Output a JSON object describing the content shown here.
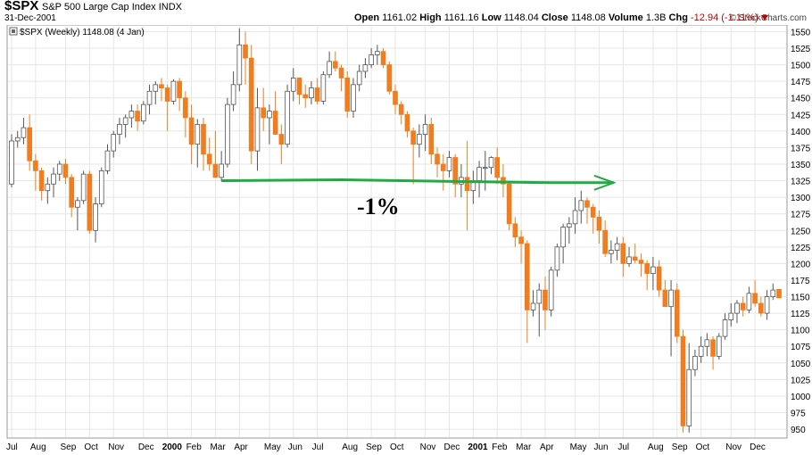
{
  "header": {
    "symbol": "$SPX",
    "name": "S&P 500 Large Cap Index",
    "exchange": "INDX",
    "date": "31-Dec-2001",
    "brand": "© StockCharts.com",
    "open_label": "Open",
    "open": "1161.02",
    "high_label": "High",
    "high": "1161.16",
    "low_label": "Low",
    "low": "1148.04",
    "close_label": "Close",
    "close": "1148.08",
    "volume_label": "Volume",
    "volume": "1.3B",
    "chg_label": "Chg",
    "chg": "-12.94 (-1.11%)"
  },
  "chart_data": {
    "type": "candlestick",
    "legend": "$SPX (Weekly) 1148.08 (4 Jan)",
    "annotation": "-1%",
    "up_color": "#ffffff",
    "down_color": "#f07d1f",
    "trend_color": "#22aa44",
    "ylim": [
      938,
      1560
    ],
    "y_ticks": [
      950,
      975,
      1000,
      1025,
      1050,
      1075,
      1100,
      1125,
      1150,
      1175,
      1200,
      1225,
      1250,
      1275,
      1300,
      1325,
      1350,
      1375,
      1400,
      1425,
      1450,
      1475,
      1500,
      1525,
      1550
    ],
    "x_ticks": [
      {
        "label": "Jul",
        "i": 0
      },
      {
        "label": "Aug",
        "i": 4
      },
      {
        "label": "Sep",
        "i": 9
      },
      {
        "label": "Oct",
        "i": 13
      },
      {
        "label": "Nov",
        "i": 17
      },
      {
        "label": "Dec",
        "i": 22
      },
      {
        "label": "2000",
        "i": 26,
        "bold": true
      },
      {
        "label": "Feb",
        "i": 30
      },
      {
        "label": "Mar",
        "i": 34
      },
      {
        "label": "Apr",
        "i": 38
      },
      {
        "label": "May",
        "i": 43
      },
      {
        "label": "Jun",
        "i": 47
      },
      {
        "label": "Jul",
        "i": 51
      },
      {
        "label": "Aug",
        "i": 56
      },
      {
        "label": "Sep",
        "i": 60
      },
      {
        "label": "Oct",
        "i": 64
      },
      {
        "label": "Nov",
        "i": 69
      },
      {
        "label": "Dec",
        "i": 73
      },
      {
        "label": "2001",
        "i": 77,
        "bold": true
      },
      {
        "label": "Feb",
        "i": 81
      },
      {
        "label": "Mar",
        "i": 85
      },
      {
        "label": "Apr",
        "i": 89
      },
      {
        "label": "May",
        "i": 94
      },
      {
        "label": "Jun",
        "i": 98
      },
      {
        "label": "Jul",
        "i": 102
      },
      {
        "label": "Aug",
        "i": 107
      },
      {
        "label": "Sep",
        "i": 111
      },
      {
        "label": "Oct",
        "i": 115
      },
      {
        "label": "Nov",
        "i": 120
      },
      {
        "label": "Dec",
        "i": 124
      }
    ],
    "candles": [
      [
        1320,
        1395,
        1315,
        1385
      ],
      [
        1385,
        1400,
        1375,
        1390
      ],
      [
        1390,
        1420,
        1380,
        1405
      ],
      [
        1405,
        1425,
        1340,
        1355
      ],
      [
        1355,
        1365,
        1310,
        1340
      ],
      [
        1340,
        1345,
        1295,
        1310
      ],
      [
        1310,
        1330,
        1290,
        1320
      ],
      [
        1320,
        1345,
        1300,
        1335
      ],
      [
        1335,
        1355,
        1325,
        1350
      ],
      [
        1350,
        1358,
        1320,
        1330
      ],
      [
        1330,
        1335,
        1270,
        1285
      ],
      [
        1285,
        1300,
        1250,
        1295
      ],
      [
        1295,
        1340,
        1290,
        1335
      ],
      [
        1335,
        1340,
        1245,
        1250
      ],
      [
        1250,
        1300,
        1232,
        1290
      ],
      [
        1290,
        1345,
        1285,
        1340
      ],
      [
        1340,
        1380,
        1335,
        1370
      ],
      [
        1370,
        1400,
        1360,
        1395
      ],
      [
        1395,
        1420,
        1380,
        1410
      ],
      [
        1410,
        1425,
        1390,
        1420
      ],
      [
        1420,
        1440,
        1405,
        1430
      ],
      [
        1430,
        1440,
        1400,
        1415
      ],
      [
        1415,
        1445,
        1410,
        1440
      ],
      [
        1440,
        1470,
        1425,
        1460
      ],
      [
        1460,
        1475,
        1440,
        1470
      ],
      [
        1470,
        1480,
        1445,
        1465
      ],
      [
        1465,
        1470,
        1400,
        1445
      ],
      [
        1445,
        1478,
        1440,
        1475
      ],
      [
        1475,
        1480,
        1430,
        1450
      ],
      [
        1450,
        1460,
        1390,
        1420
      ],
      [
        1420,
        1440,
        1350,
        1380
      ],
      [
        1380,
        1418,
        1345,
        1410
      ],
      [
        1410,
        1420,
        1340,
        1365
      ],
      [
        1365,
        1390,
        1340,
        1350
      ],
      [
        1350,
        1400,
        1330,
        1330
      ],
      [
        1330,
        1370,
        1325,
        1350
      ],
      [
        1350,
        1450,
        1345,
        1440
      ],
      [
        1440,
        1490,
        1430,
        1470
      ],
      [
        1470,
        1555,
        1460,
        1530
      ],
      [
        1530,
        1550,
        1470,
        1510
      ],
      [
        1510,
        1530,
        1350,
        1370
      ],
      [
        1370,
        1465,
        1340,
        1435
      ],
      [
        1435,
        1465,
        1400,
        1420
      ],
      [
        1420,
        1440,
        1380,
        1430
      ],
      [
        1430,
        1460,
        1400,
        1395
      ],
      [
        1395,
        1410,
        1350,
        1380
      ],
      [
        1380,
        1470,
        1375,
        1460
      ],
      [
        1460,
        1495,
        1445,
        1480
      ],
      [
        1480,
        1480,
        1440,
        1455
      ],
      [
        1455,
        1470,
        1435,
        1450
      ],
      [
        1450,
        1475,
        1440,
        1465
      ],
      [
        1465,
        1480,
        1440,
        1445
      ],
      [
        1445,
        1490,
        1440,
        1485
      ],
      [
        1485,
        1520,
        1480,
        1505
      ],
      [
        1505,
        1520,
        1490,
        1495
      ],
      [
        1495,
        1500,
        1460,
        1480
      ],
      [
        1480,
        1490,
        1420,
        1430
      ],
      [
        1430,
        1480,
        1420,
        1470
      ],
      [
        1470,
        1500,
        1460,
        1490
      ],
      [
        1490,
        1510,
        1480,
        1500
      ],
      [
        1500,
        1525,
        1495,
        1515
      ],
      [
        1515,
        1530,
        1500,
        1520
      ],
      [
        1520,
        1525,
        1495,
        1500
      ],
      [
        1500,
        1505,
        1455,
        1460
      ],
      [
        1460,
        1470,
        1425,
        1440
      ],
      [
        1440,
        1445,
        1410,
        1425
      ],
      [
        1425,
        1430,
        1390,
        1400
      ],
      [
        1400,
        1405,
        1320,
        1380
      ],
      [
        1380,
        1410,
        1360,
        1395
      ],
      [
        1395,
        1425,
        1370,
        1410
      ],
      [
        1410,
        1420,
        1350,
        1365
      ],
      [
        1365,
        1375,
        1330,
        1350
      ],
      [
        1350,
        1365,
        1310,
        1340
      ],
      [
        1340,
        1370,
        1330,
        1360
      ],
      [
        1360,
        1365,
        1300,
        1320
      ],
      [
        1320,
        1350,
        1300,
        1330
      ],
      [
        1330,
        1385,
        1250,
        1310
      ],
      [
        1310,
        1340,
        1290,
        1325
      ],
      [
        1325,
        1355,
        1300,
        1345
      ],
      [
        1345,
        1370,
        1310,
        1345
      ],
      [
        1345,
        1362,
        1335,
        1360
      ],
      [
        1360,
        1375,
        1320,
        1330
      ],
      [
        1330,
        1350,
        1300,
        1320
      ],
      [
        1320,
        1325,
        1250,
        1260
      ],
      [
        1260,
        1270,
        1225,
        1240
      ],
      [
        1240,
        1250,
        1200,
        1230
      ],
      [
        1230,
        1235,
        1080,
        1130
      ],
      [
        1130,
        1160,
        1120,
        1140
      ],
      [
        1140,
        1170,
        1090,
        1160
      ],
      [
        1160,
        1180,
        1100,
        1130
      ],
      [
        1130,
        1195,
        1120,
        1190
      ],
      [
        1190,
        1230,
        1180,
        1225
      ],
      [
        1225,
        1260,
        1200,
        1255
      ],
      [
        1255,
        1270,
        1230,
        1260
      ],
      [
        1260,
        1300,
        1245,
        1280
      ],
      [
        1280,
        1310,
        1260,
        1295
      ],
      [
        1295,
        1300,
        1260,
        1285
      ],
      [
        1285,
        1290,
        1245,
        1270
      ],
      [
        1270,
        1280,
        1230,
        1250
      ],
      [
        1250,
        1265,
        1210,
        1215
      ],
      [
        1215,
        1235,
        1200,
        1220
      ],
      [
        1220,
        1240,
        1205,
        1230
      ],
      [
        1230,
        1240,
        1180,
        1200
      ],
      [
        1200,
        1225,
        1195,
        1210
      ],
      [
        1210,
        1230,
        1200,
        1205
      ],
      [
        1205,
        1215,
        1180,
        1200
      ],
      [
        1200,
        1205,
        1160,
        1185
      ],
      [
        1185,
        1210,
        1160,
        1195
      ],
      [
        1195,
        1205,
        1150,
        1160
      ],
      [
        1160,
        1175,
        1140,
        1135
      ],
      [
        1135,
        1175,
        1060,
        1160
      ],
      [
        1160,
        1170,
        1080,
        1090
      ],
      [
        1090,
        1100,
        945,
        955
      ],
      [
        955,
        1080,
        945,
        1040
      ],
      [
        1040,
        1070,
        1030,
        1060
      ],
      [
        1060,
        1090,
        1050,
        1075
      ],
      [
        1075,
        1095,
        1060,
        1085
      ],
      [
        1085,
        1090,
        1040,
        1060
      ],
      [
        1060,
        1095,
        1055,
        1090
      ],
      [
        1090,
        1125,
        1085,
        1115
      ],
      [
        1115,
        1140,
        1105,
        1125
      ],
      [
        1125,
        1145,
        1110,
        1140
      ],
      [
        1140,
        1150,
        1120,
        1130
      ],
      [
        1130,
        1165,
        1125,
        1155
      ],
      [
        1155,
        1175,
        1135,
        1140
      ],
      [
        1140,
        1150,
        1120,
        1125
      ],
      [
        1125,
        1160,
        1115,
        1150
      ],
      [
        1150,
        1170,
        1145,
        1160
      ],
      [
        1161.02,
        1161.16,
        1148.04,
        1148.08
      ]
    ]
  }
}
